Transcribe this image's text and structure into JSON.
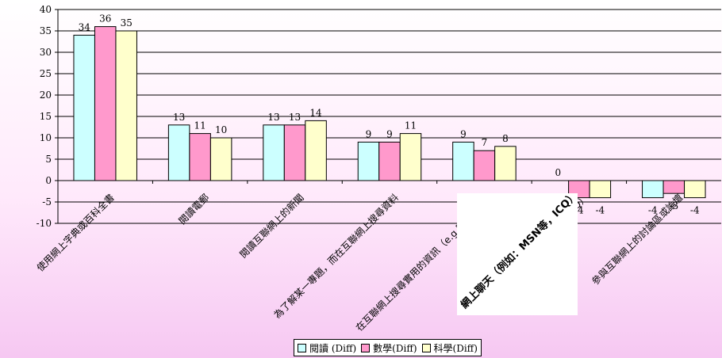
{
  "colors": {
    "reading": "#ccffff",
    "math": "#ff99cc",
    "science": "#ffffcc"
  },
  "chart_data": {
    "type": "bar",
    "title": "",
    "xlabel": "",
    "ylabel": "",
    "ylim": [
      -10,
      40
    ],
    "yticks": [
      "40",
      "35",
      "30",
      "25",
      "20",
      "15",
      "10",
      "5",
      "0",
      "-5",
      "-10"
    ],
    "categories": [
      "使用網上字典或百科全書",
      "閱讀電郵",
      "閱讀互聯網上的新聞",
      "為了解某一專題，而在互聯網上搜尋資料",
      "在互聯網上搜尋實用的資訊（e.g.時間表，…",
      "網上聊天（例如：MSN等，ICQ）",
      "參與互聯網上的討論區或論壇"
    ],
    "series": [
      {
        "name": "閱讀 (Diff)",
        "values": [
          34,
          13,
          13,
          9,
          9,
          0,
          -4
        ],
        "labels": [
          "34",
          "13",
          "13",
          "9",
          "9",
          "0",
          "-4"
        ]
      },
      {
        "name": "數學(Diff)",
        "values": [
          36,
          11,
          13,
          9,
          7,
          -4,
          -3
        ],
        "labels": [
          "36",
          "11",
          "13",
          "9",
          "7",
          "-4",
          "-3"
        ]
      },
      {
        "name": "科學(Diff)",
        "values": [
          35,
          10,
          14,
          11,
          8,
          -4,
          -4
        ],
        "labels": [
          "35",
          "10",
          "14",
          "11",
          "8",
          "-4",
          "-4"
        ]
      }
    ],
    "legend_position": "bottom-center",
    "grid": true
  },
  "overlay": {
    "text": "網上聊天（例如：MSN等，ICQ）"
  }
}
